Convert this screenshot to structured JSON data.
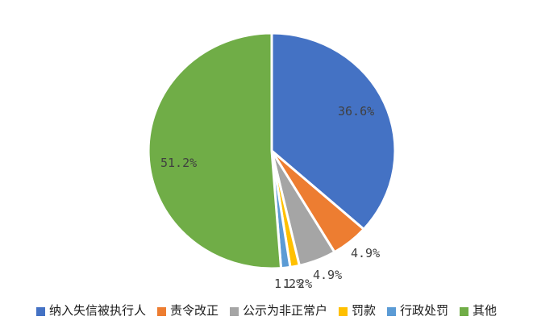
{
  "chart": {
    "background": "#ffffff",
    "data_label_color": "#404040",
    "legend_text_color": "#1a1a1a",
    "slice_border_color": "#ffffff"
  },
  "chart_data": {
    "type": "pie",
    "title": "",
    "categories": [
      "纳入失信被执行人",
      "责令改正",
      "公示为非正常户",
      "罚款",
      "行政处罚",
      "其他"
    ],
    "values": [
      36.6,
      4.9,
      4.9,
      1.2,
      1.2,
      51.2
    ],
    "labels": [
      "36.6%",
      "4.9%",
      "4.9%",
      "1.2%",
      "1.2%",
      "51.2%"
    ],
    "colors": [
      "#4472C4",
      "#ED7D31",
      "#A5A5A5",
      "#FFC000",
      "#5B9BD5",
      "#70AD47"
    ],
    "start_angle_deg": 0,
    "direction": "clockwise",
    "legend_position": "bottom",
    "label_placement": [
      "inside",
      "outside",
      "outside",
      "outside",
      "outside",
      "inside"
    ]
  }
}
